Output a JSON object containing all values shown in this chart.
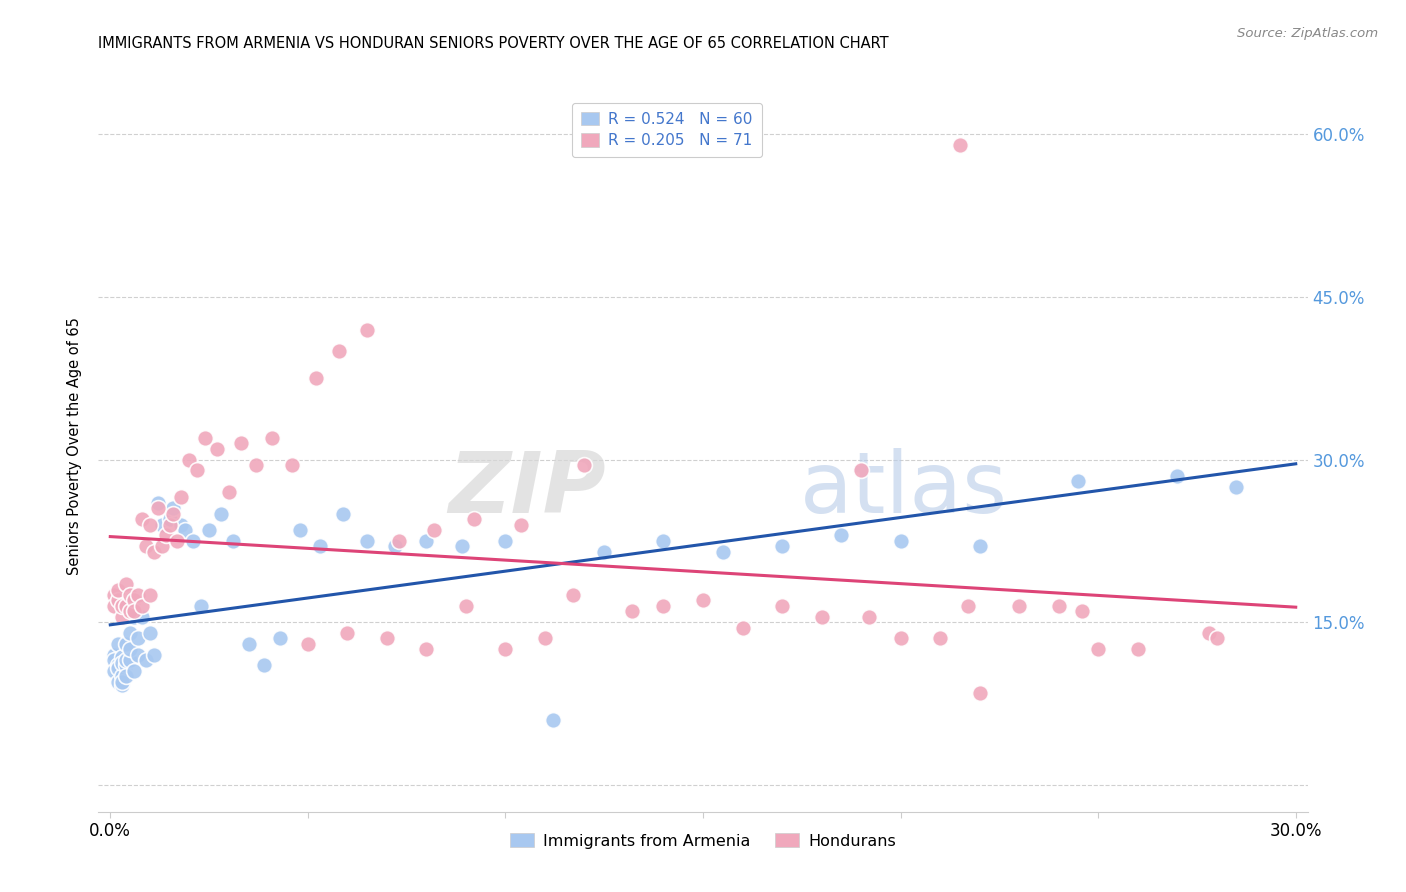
{
  "title": "IMMIGRANTS FROM ARMENIA VS HONDURAN SENIORS POVERTY OVER THE AGE OF 65 CORRELATION CHART",
  "source": "Source: ZipAtlas.com",
  "ylabel": "Seniors Poverty Over the Age of 65",
  "xlim": [
    0.0,
    0.3
  ],
  "ylim": [
    -0.025,
    0.65
  ],
  "yticks": [
    0.0,
    0.15,
    0.3,
    0.45,
    0.6
  ],
  "xticks": [
    0.0,
    0.05,
    0.1,
    0.15,
    0.2,
    0.25,
    0.3
  ],
  "grid_color": "#d0d0d0",
  "background_color": "#ffffff",
  "blue_color": "#a8c8f0",
  "pink_color": "#f0a8bc",
  "blue_line_color": "#2255aa",
  "pink_line_color": "#dd4477",
  "right_label_color": "#5599dd",
  "legend_R_color": "#4477cc",
  "armenia_R": 0.524,
  "armenia_N": 60,
  "honduras_R": 0.205,
  "honduras_N": 71,
  "armenia_x": [
    0.001,
    0.001,
    0.001,
    0.002,
    0.002,
    0.002,
    0.002,
    0.003,
    0.003,
    0.003,
    0.003,
    0.003,
    0.004,
    0.004,
    0.004,
    0.004,
    0.005,
    0.005,
    0.005,
    0.006,
    0.006,
    0.007,
    0.007,
    0.008,
    0.009,
    0.01,
    0.011,
    0.012,
    0.013,
    0.015,
    0.016,
    0.018,
    0.019,
    0.021,
    0.023,
    0.025,
    0.028,
    0.031,
    0.035,
    0.039,
    0.043,
    0.048,
    0.053,
    0.059,
    0.065,
    0.072,
    0.08,
    0.089,
    0.1,
    0.112,
    0.125,
    0.14,
    0.155,
    0.17,
    0.185,
    0.2,
    0.22,
    0.245,
    0.27,
    0.285
  ],
  "armenia_y": [
    0.12,
    0.115,
    0.105,
    0.13,
    0.11,
    0.095,
    0.108,
    0.118,
    0.1,
    0.092,
    0.112,
    0.095,
    0.13,
    0.11,
    0.1,
    0.115,
    0.14,
    0.115,
    0.125,
    0.155,
    0.105,
    0.135,
    0.12,
    0.155,
    0.115,
    0.14,
    0.12,
    0.26,
    0.24,
    0.245,
    0.255,
    0.24,
    0.235,
    0.225,
    0.165,
    0.235,
    0.25,
    0.225,
    0.13,
    0.11,
    0.135,
    0.235,
    0.22,
    0.25,
    0.225,
    0.22,
    0.225,
    0.22,
    0.225,
    0.06,
    0.215,
    0.225,
    0.215,
    0.22,
    0.23,
    0.225,
    0.22,
    0.28,
    0.285,
    0.275
  ],
  "honduras_x": [
    0.001,
    0.001,
    0.002,
    0.002,
    0.003,
    0.003,
    0.004,
    0.004,
    0.005,
    0.005,
    0.006,
    0.006,
    0.007,
    0.008,
    0.008,
    0.009,
    0.01,
    0.01,
    0.011,
    0.012,
    0.013,
    0.014,
    0.015,
    0.016,
    0.017,
    0.018,
    0.02,
    0.022,
    0.024,
    0.027,
    0.03,
    0.033,
    0.037,
    0.041,
    0.046,
    0.052,
    0.058,
    0.065,
    0.073,
    0.082,
    0.092,
    0.104,
    0.117,
    0.132,
    0.15,
    0.17,
    0.192,
    0.217,
    0.246,
    0.278,
    0.05,
    0.06,
    0.07,
    0.08,
    0.09,
    0.1,
    0.11,
    0.12,
    0.14,
    0.16,
    0.18,
    0.2,
    0.22,
    0.24,
    0.26,
    0.28,
    0.19,
    0.21,
    0.23,
    0.25,
    0.215
  ],
  "honduras_y": [
    0.175,
    0.165,
    0.17,
    0.18,
    0.155,
    0.165,
    0.185,
    0.165,
    0.175,
    0.16,
    0.17,
    0.16,
    0.175,
    0.165,
    0.245,
    0.22,
    0.175,
    0.24,
    0.215,
    0.255,
    0.22,
    0.23,
    0.24,
    0.25,
    0.225,
    0.265,
    0.3,
    0.29,
    0.32,
    0.31,
    0.27,
    0.315,
    0.295,
    0.32,
    0.295,
    0.375,
    0.4,
    0.42,
    0.225,
    0.235,
    0.245,
    0.24,
    0.175,
    0.16,
    0.17,
    0.165,
    0.155,
    0.165,
    0.16,
    0.14,
    0.13,
    0.14,
    0.135,
    0.125,
    0.165,
    0.125,
    0.135,
    0.295,
    0.165,
    0.145,
    0.155,
    0.135,
    0.085,
    0.165,
    0.125,
    0.135,
    0.29,
    0.135,
    0.165,
    0.125,
    0.59
  ]
}
